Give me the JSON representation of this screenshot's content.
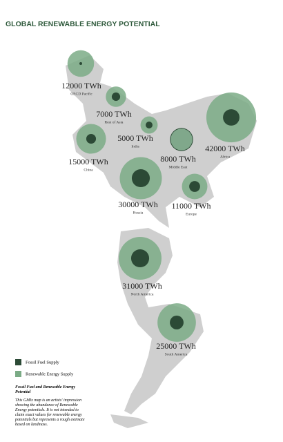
{
  "title": "GLOBAL RENEWABLE ENERGY POTENTIAL",
  "legend": {
    "fossil": {
      "label": "Fossil Fuel Supply",
      "color": "#2c4a36"
    },
    "renewable": {
      "label": "Renewable Energy Supply",
      "color": "#7bab86"
    }
  },
  "regions": [
    {
      "name": "OECD Pacific",
      "potential": 12000,
      "potential_label": "12000 TWh",
      "fossil": 130
    },
    {
      "name": "Rest of Asia",
      "potential": 7000,
      "potential_label": "7000 TWh",
      "fossil": 1200
    },
    {
      "name": "India",
      "potential": 5000,
      "potential_label": "5000 TWh",
      "fossil": 800
    },
    {
      "name": "Middle East",
      "potential": 8000,
      "potential_label": "8000 TWh",
      "fossil": 9000
    },
    {
      "name": "Africa",
      "potential": 42000,
      "potential_label": "42000 TWh",
      "fossil": 4600
    },
    {
      "name": "China",
      "potential": 15000,
      "potential_label": "15000 TWh",
      "fossil": 1600
    },
    {
      "name": "Russia",
      "potential": 30000,
      "potential_label": "30000 TWh",
      "fossil": 5500
    },
    {
      "name": "Europe",
      "potential": 11000,
      "potential_label": "11000 TWh",
      "fossil": 2000
    },
    {
      "name": "North America",
      "potential": 31000,
      "potential_label": "31000 TWh",
      "fossil": 5500
    },
    {
      "name": "South America",
      "potential": 25000,
      "potential_label": "25000 TWh",
      "fossil": 3200
    }
  ],
  "note": {
    "title": "Fossil Fuel and Renewable Energy Potential",
    "text": "This GMIx map is an artists' impression showing the abundance of Renewable Energy potentials. It is not intended to claim exact values for renewable energy potentials but represents a rough estimate based on landmass."
  }
}
